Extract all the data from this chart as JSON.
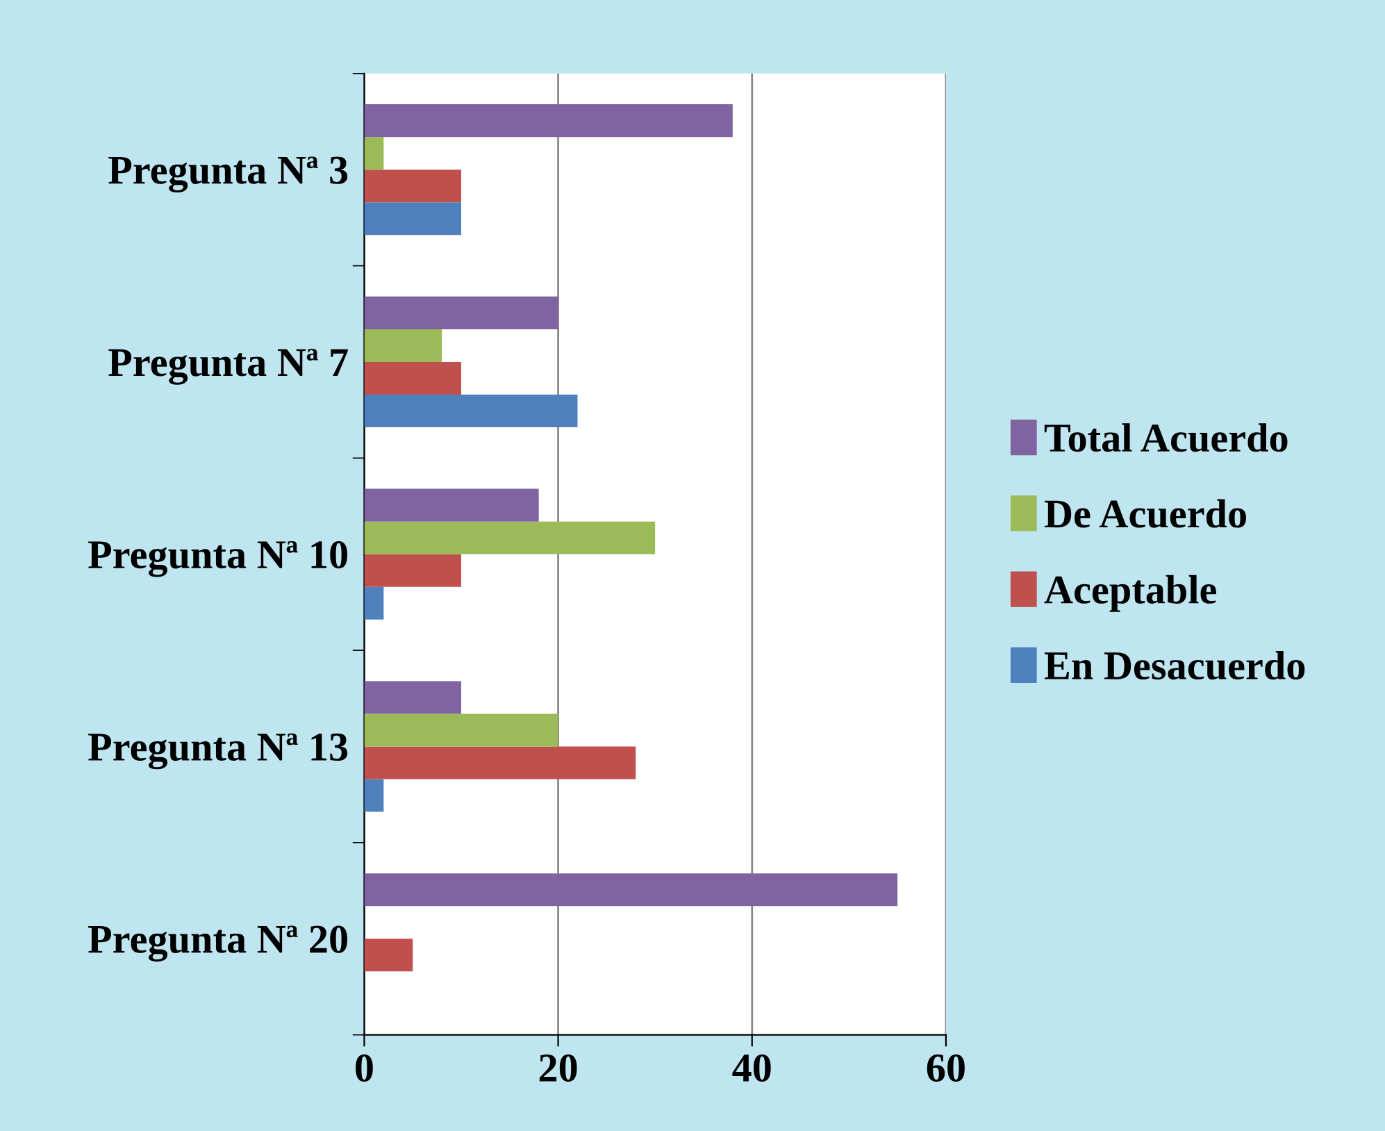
{
  "chart_data": {
    "type": "bar",
    "orientation": "horizontal",
    "categories": [
      "Pregunta Nª 3",
      "Pregunta Nª 7",
      "Pregunta Nª 10",
      "Pregunta Nª 13",
      "Pregunta Nª 20"
    ],
    "series": [
      {
        "name": "En Desacuerdo",
        "color": "#4f81bd",
        "values": [
          10,
          22,
          2,
          2,
          0
        ]
      },
      {
        "name": "Aceptable",
        "color": "#c0504d",
        "values": [
          10,
          10,
          10,
          28,
          5
        ]
      },
      {
        "name": "De Acuerdo",
        "color": "#9bbb59",
        "values": [
          2,
          8,
          30,
          20,
          0
        ]
      },
      {
        "name": "Total Acuerdo",
        "color": "#8064a2",
        "values": [
          38,
          20,
          18,
          10,
          55
        ]
      }
    ],
    "xlim": [
      0,
      60
    ],
    "xticks": [
      0,
      20,
      40,
      60
    ],
    "grid": "x",
    "legend": "right"
  }
}
